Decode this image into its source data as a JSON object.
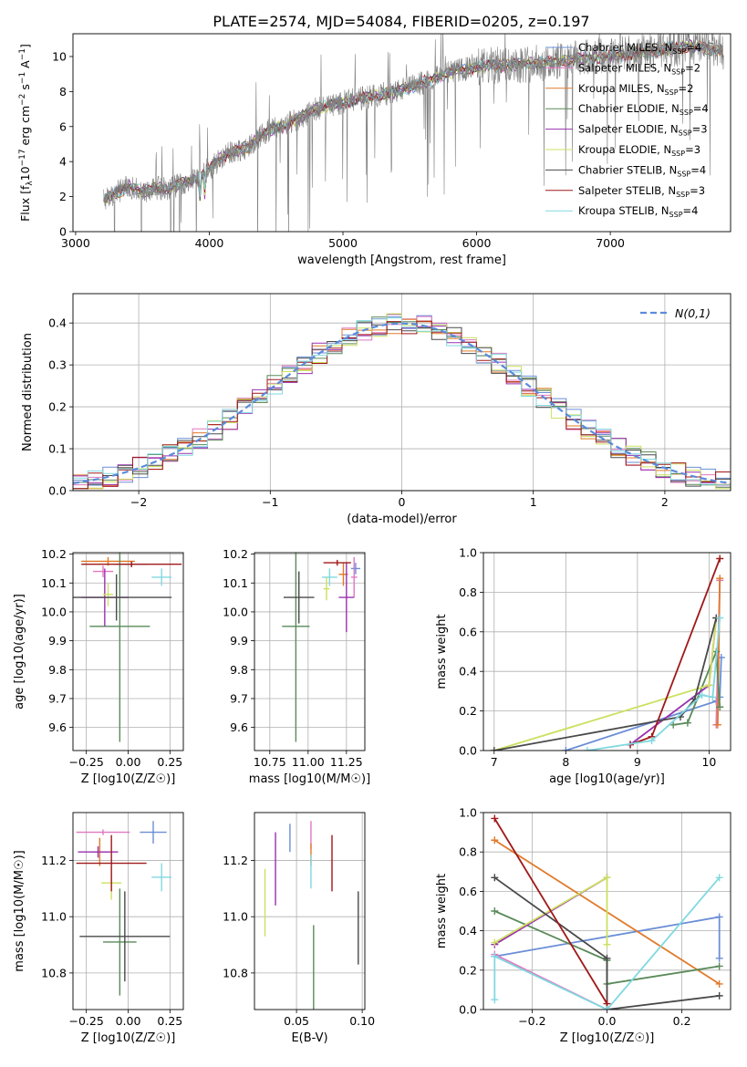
{
  "figure_title": "PLATE=2574, MJD=54084, FIBERID=0205, z=0.197",
  "colors": {
    "chabrier_miles": "#6a8ed6",
    "salpeter_miles": "#e078c0",
    "kroupa_miles": "#e07a2a",
    "chabrier_elodie": "#5a8a5a",
    "salpeter_elodie": "#9a30b0",
    "kroupa_elodie": "#cce060",
    "chabrier_stelib": "#4a4a4a",
    "salpeter_stelib": "#a01818",
    "kroupa_stelib": "#80d8e0",
    "data_spectrum": "#808080",
    "normal_curve": "#5b8bdb"
  },
  "chart_data": [
    {
      "id": "spectrum",
      "type": "line",
      "xlabel": "wavelength [Angstrom, rest frame]",
      "ylabel": "Flux [f_λ10^-17 erg cm^-2 s^-1 A^-1]",
      "xlim": [
        2980,
        7900
      ],
      "ylim": [
        0,
        11.3
      ],
      "xticks": [
        3000,
        4000,
        5000,
        6000,
        7000
      ],
      "yticks": [
        0,
        2,
        4,
        6,
        8,
        10
      ],
      "grid": false,
      "legend_position": "top-right",
      "data_x_range": [
        3210,
        7850
      ],
      "continuum": {
        "x": [
          3210,
          3300,
          3400,
          3500,
          3600,
          3700,
          3800,
          3900,
          4000,
          4100,
          4200,
          4300,
          4400,
          4600,
          4800,
          5000,
          5200,
          5400,
          5600,
          5800,
          6000,
          6200,
          6400,
          6600,
          6800,
          7000,
          7200,
          7400,
          7600,
          7850
        ],
        "y": [
          1.8,
          2.2,
          2.6,
          2.3,
          2.5,
          2.4,
          2.8,
          3.0,
          3.6,
          4.3,
          4.6,
          4.9,
          5.6,
          6.2,
          7.0,
          7.4,
          7.7,
          8.0,
          8.5,
          9.1,
          9.4,
          9.5,
          9.6,
          9.7,
          9.9,
          10.0,
          10.2,
          10.4,
          10.6,
          10.3
        ]
      },
      "series": [
        {
          "name": "Chabrier MILES, N_SSP=4",
          "name_main": "Chabrier MILES, N",
          "name_sub": "SSP",
          "name_tail": "=4",
          "color_key": "chabrier_miles"
        },
        {
          "name": "Salpeter MILES, N_SSP=2",
          "name_main": "Salpeter MILES, N",
          "name_sub": "SSP",
          "name_tail": "=2",
          "color_key": "salpeter_miles"
        },
        {
          "name": "Kroupa MILES, N_SSP=2",
          "name_main": "Kroupa MILES, N",
          "name_sub": "SSP",
          "name_tail": "=2",
          "color_key": "kroupa_miles"
        },
        {
          "name": "Chabrier ELODIE, N_SSP=4",
          "name_main": "Chabrier ELODIE, N",
          "name_sub": "SSP",
          "name_tail": "=4",
          "color_key": "chabrier_elodie"
        },
        {
          "name": "Salpeter ELODIE, N_SSP=3",
          "name_main": "Salpeter ELODIE, N",
          "name_sub": "SSP",
          "name_tail": "=3",
          "color_key": "salpeter_elodie"
        },
        {
          "name": "Kroupa ELODIE, N_SSP=3",
          "name_main": "Kroupa ELODIE, N",
          "name_sub": "SSP",
          "name_tail": "=3",
          "color_key": "kroupa_elodie"
        },
        {
          "name": "Chabrier STELIB, N_SSP=4",
          "name_main": "Chabrier STELIB, N",
          "name_sub": "SSP",
          "name_tail": "=4",
          "color_key": "chabrier_stelib"
        },
        {
          "name": "Salpeter STELIB, N_SSP=3",
          "name_main": "Salpeter STELIB, N",
          "name_sub": "SSP",
          "name_tail": "=3",
          "color_key": "salpeter_stelib"
        },
        {
          "name": "Kroupa STELIB, N_SSP=4",
          "name_main": "Kroupa STELIB, N",
          "name_sub": "SSP",
          "name_tail": "=4",
          "color_key": "kroupa_stelib"
        }
      ]
    },
    {
      "id": "residual_histogram",
      "type": "line",
      "xlabel": "(data-model)/error",
      "ylabel": "Normed distribution",
      "xlim": [
        -2.5,
        2.5
      ],
      "ylim": [
        0,
        0.47
      ],
      "xticks": [
        -2,
        -1,
        0,
        1,
        2
      ],
      "yticks": [
        0.0,
        0.1,
        0.2,
        0.3,
        0.4
      ],
      "grid": true,
      "legend_position": "top-right",
      "legend_label": "N(0,1)",
      "bin_edges_range": [
        -2.5,
        2.5
      ],
      "bin_count": 44,
      "normal_curve": {
        "mean": 0,
        "sigma": 1
      }
    },
    {
      "id": "age_vs_metallicity",
      "type": "scatter",
      "xlabel": "Z [log10(Z/Z☉)]",
      "ylabel": "age [log10(age/yr)]",
      "xlim": [
        -0.33,
        0.33
      ],
      "ylim": [
        9.52,
        10.205
      ],
      "xticks": [
        -0.25,
        0.0,
        0.25
      ],
      "yticks": [
        9.6,
        9.7,
        9.8,
        9.9,
        10.0,
        10.1,
        10.2
      ],
      "grid": true,
      "points": [
        {
          "x": 0.02,
          "y": 10.165,
          "xerr": 0.1,
          "yerr": 0.01,
          "color_key": "chabrier_miles"
        },
        {
          "x": -0.15,
          "y": 10.14,
          "xerr": 0.06,
          "yerr": 0.02,
          "color_key": "salpeter_miles"
        },
        {
          "x": -0.12,
          "y": 10.175,
          "xerr": 0.16,
          "yerr": 0.015,
          "color_key": "kroupa_miles"
        },
        {
          "x": -0.05,
          "y": 9.95,
          "xerr": 0.18,
          "yerr": 0.4,
          "color_key": "chabrier_elodie"
        },
        {
          "x": -0.14,
          "y": 10.05,
          "xerr": 0.14,
          "yerr": 0.1,
          "color_key": "salpeter_elodie"
        },
        {
          "x": -0.12,
          "y": 10.06,
          "xerr": 0.03,
          "yerr": 0.04,
          "color_key": "kroupa_elodie"
        },
        {
          "x": -0.07,
          "y": 10.05,
          "xerr": 0.33,
          "yerr": 0.08,
          "color_key": "chabrier_stelib"
        },
        {
          "x": 0.02,
          "y": 10.165,
          "xerr": 0.3,
          "yerr": 0.01,
          "color_key": "salpeter_stelib"
        },
        {
          "x": 0.2,
          "y": 10.12,
          "xerr": 0.06,
          "yerr": 0.03,
          "color_key": "kroupa_stelib"
        }
      ]
    },
    {
      "id": "age_vs_mass",
      "type": "scatter",
      "xlabel": "mass [log10(M/M☉)]",
      "ylabel": "",
      "xlim": [
        10.65,
        11.37
      ],
      "ylim": [
        9.52,
        10.205
      ],
      "xticks": [
        10.75,
        11.0,
        11.25
      ],
      "yticks": [
        9.6,
        9.7,
        9.8,
        9.9,
        10.0,
        10.1,
        10.2
      ],
      "grid": true,
      "points": [
        {
          "x": 11.31,
          "y": 10.15,
          "xerr": 0.03,
          "yerr": 0.02,
          "color_key": "chabrier_miles"
        },
        {
          "x": 11.3,
          "y": 10.12,
          "xerr": 0.02,
          "yerr": 0.07,
          "color_key": "salpeter_miles"
        },
        {
          "x": 11.23,
          "y": 10.13,
          "xerr": 0.03,
          "yerr": 0.04,
          "color_key": "kroupa_miles"
        },
        {
          "x": 10.92,
          "y": 9.95,
          "xerr": 0.09,
          "yerr": 0.4,
          "color_key": "chabrier_elodie"
        },
        {
          "x": 11.25,
          "y": 10.05,
          "xerr": 0.05,
          "yerr": 0.12,
          "color_key": "salpeter_elodie"
        },
        {
          "x": 11.12,
          "y": 10.08,
          "xerr": 0.02,
          "yerr": 0.04,
          "color_key": "kroupa_elodie"
        },
        {
          "x": 10.94,
          "y": 10.05,
          "xerr": 0.1,
          "yerr": 0.09,
          "color_key": "chabrier_stelib"
        },
        {
          "x": 11.19,
          "y": 10.17,
          "xerr": 0.09,
          "yerr": 0.01,
          "color_key": "salpeter_stelib"
        },
        {
          "x": 11.14,
          "y": 10.12,
          "xerr": 0.05,
          "yerr": 0.03,
          "color_key": "kroupa_stelib"
        }
      ]
    },
    {
      "id": "mass_weight_vs_age",
      "type": "line",
      "xlabel": "age [log10(age/yr)]",
      "ylabel": "mass weight",
      "xlim": [
        6.85,
        10.3
      ],
      "ylim": [
        0,
        1.0
      ],
      "xticks": [
        7,
        8,
        9,
        10
      ],
      "yticks": [
        0.0,
        0.2,
        0.4,
        0.6,
        0.8,
        1.0
      ],
      "grid": true,
      "series": [
        {
          "color_key": "chabrier_miles",
          "x": [
            8.0,
            10.1,
            10.15,
            10.17
          ],
          "y": [
            0.0,
            0.25,
            0.27,
            0.47
          ]
        },
        {
          "color_key": "salpeter_miles",
          "x": [
            10.1,
            10.15
          ],
          "y": [
            0.13,
            0.86
          ]
        },
        {
          "color_key": "kroupa_miles",
          "x": [
            10.12,
            10.15
          ],
          "y": [
            0.13,
            0.87
          ]
        },
        {
          "color_key": "chabrier_elodie",
          "x": [
            9.5,
            9.7,
            10.1,
            10.15
          ],
          "y": [
            0.13,
            0.14,
            0.5,
            0.22
          ]
        },
        {
          "color_key": "salpeter_elodie",
          "x": [
            8.9,
            10.0,
            10.1
          ],
          "y": [
            0.03,
            0.33,
            0.67
          ]
        },
        {
          "color_key": "kroupa_elodie",
          "x": [
            7.0,
            10.0,
            10.1
          ],
          "y": [
            0.0,
            0.33,
            0.67
          ]
        },
        {
          "color_key": "chabrier_stelib",
          "x": [
            7.0,
            9.6,
            9.8,
            10.1
          ],
          "y": [
            0.0,
            0.17,
            0.26,
            0.67
          ]
        },
        {
          "color_key": "salpeter_stelib",
          "x": [
            8.9,
            9.2,
            10.15
          ],
          "y": [
            0.03,
            0.07,
            0.97
          ]
        },
        {
          "color_key": "kroupa_stelib",
          "x": [
            8.3,
            9.2,
            9.9,
            10.05,
            10.15
          ],
          "y": [
            0.0,
            0.05,
            0.28,
            0.27,
            0.67
          ]
        }
      ]
    },
    {
      "id": "mass_vs_metallicity",
      "type": "scatter",
      "xlabel": "Z [log10(Z/Z☉)]",
      "ylabel": "mass [log10(M/M☉)]",
      "xlim": [
        -0.33,
        0.33
      ],
      "ylim": [
        10.67,
        11.37
      ],
      "xticks": [
        -0.25,
        0.0,
        0.25
      ],
      "yticks": [
        10.8,
        11.0,
        11.2
      ],
      "grid": true,
      "points": [
        {
          "x": 0.15,
          "y": 11.3,
          "xerr": 0.08,
          "yerr": 0.04,
          "color_key": "chabrier_miles"
        },
        {
          "x": -0.15,
          "y": 11.3,
          "xerr": 0.16,
          "yerr": 0.01,
          "color_key": "salpeter_miles"
        },
        {
          "x": -0.17,
          "y": 11.23,
          "xerr": 0.05,
          "yerr": 0.05,
          "color_key": "kroupa_miles"
        },
        {
          "x": -0.05,
          "y": 10.91,
          "xerr": 0.1,
          "yerr": 0.19,
          "color_key": "chabrier_elodie"
        },
        {
          "x": -0.18,
          "y": 11.23,
          "xerr": 0.12,
          "yerr": 0.02,
          "color_key": "salpeter_elodie"
        },
        {
          "x": -0.1,
          "y": 11.12,
          "xerr": 0.06,
          "yerr": 0.06,
          "color_key": "kroupa_elodie"
        },
        {
          "x": -0.02,
          "y": 10.93,
          "xerr": 0.27,
          "yerr": 0.16,
          "color_key": "chabrier_stelib"
        },
        {
          "x": -0.1,
          "y": 11.19,
          "xerr": 0.21,
          "yerr": 0.1,
          "color_key": "salpeter_stelib"
        },
        {
          "x": 0.2,
          "y": 11.14,
          "xerr": 0.06,
          "yerr": 0.05,
          "color_key": "kroupa_stelib"
        }
      ]
    },
    {
      "id": "mass_vs_ebv",
      "type": "scatter",
      "xlabel": "E(B-V)",
      "ylabel": "",
      "xlim": [
        0.018,
        0.102
      ],
      "ylim": [
        10.67,
        11.37
      ],
      "xticks": [
        0.05,
        0.1
      ],
      "yticks": [
        10.8,
        11.0,
        11.2
      ],
      "grid": true,
      "points": [
        {
          "x": 0.045,
          "y": 11.28,
          "yerr": 0.05,
          "color_key": "chabrier_miles"
        },
        {
          "x": 0.061,
          "y": 11.29,
          "yerr": 0.05,
          "color_key": "salpeter_miles"
        },
        {
          "x": 0.061,
          "y": 11.22,
          "yerr": 0.04,
          "color_key": "kroupa_miles"
        },
        {
          "x": 0.063,
          "y": 10.82,
          "yerr": 0.15,
          "color_key": "chabrier_elodie"
        },
        {
          "x": 0.034,
          "y": 11.17,
          "yerr": 0.13,
          "color_key": "salpeter_elodie"
        },
        {
          "x": 0.026,
          "y": 11.05,
          "yerr": 0.12,
          "color_key": "kroupa_elodie"
        },
        {
          "x": 0.097,
          "y": 10.96,
          "yerr": 0.13,
          "color_key": "chabrier_stelib"
        },
        {
          "x": 0.077,
          "y": 11.19,
          "yerr": 0.1,
          "color_key": "salpeter_stelib"
        },
        {
          "x": 0.061,
          "y": 11.16,
          "yerr": 0.06,
          "color_key": "kroupa_stelib"
        }
      ]
    },
    {
      "id": "mass_weight_vs_metallicity",
      "type": "line",
      "xlabel": "Z [log10(Z/Z☉)]",
      "ylabel": "mass weight",
      "xlim": [
        -0.33,
        0.33
      ],
      "ylim": [
        0,
        1.0
      ],
      "xticks": [
        -0.2,
        0.0,
        0.2
      ],
      "yticks": [
        0.0,
        0.2,
        0.4,
        0.6,
        0.8,
        1.0
      ],
      "grid": true,
      "series": [
        {
          "color_key": "chabrier_miles",
          "x": [
            -0.3,
            0.3,
            0.3
          ],
          "y": [
            0.27,
            0.47,
            0.26
          ]
        },
        {
          "color_key": "salpeter_miles",
          "x": [
            -0.3,
            0.0
          ],
          "y": [
            0.28,
            0.0
          ]
        },
        {
          "color_key": "kroupa_miles",
          "x": [
            -0.3,
            0.3
          ],
          "y": [
            0.86,
            0.13
          ]
        },
        {
          "color_key": "chabrier_elodie",
          "x": [
            -0.3,
            0.0,
            0.0,
            0.3
          ],
          "y": [
            0.5,
            0.25,
            0.13,
            0.22
          ]
        },
        {
          "color_key": "salpeter_elodie",
          "x": [
            -0.3,
            0.0
          ],
          "y": [
            0.33,
            0.67
          ]
        },
        {
          "color_key": "kroupa_elodie",
          "x": [
            -0.3,
            0.0,
            0.0
          ],
          "y": [
            0.34,
            0.67,
            0.33
          ]
        },
        {
          "color_key": "chabrier_stelib",
          "x": [
            -0.3,
            0.0,
            0.0,
            0.3
          ],
          "y": [
            0.67,
            0.26,
            0.0,
            0.07
          ]
        },
        {
          "color_key": "salpeter_stelib",
          "x": [
            -0.3,
            0.0
          ],
          "y": [
            0.97,
            0.03
          ]
        },
        {
          "color_key": "kroupa_stelib",
          "x": [
            -0.3,
            -0.3,
            0.0,
            0.3
          ],
          "y": [
            0.05,
            0.27,
            0.0,
            0.67
          ]
        }
      ]
    }
  ]
}
